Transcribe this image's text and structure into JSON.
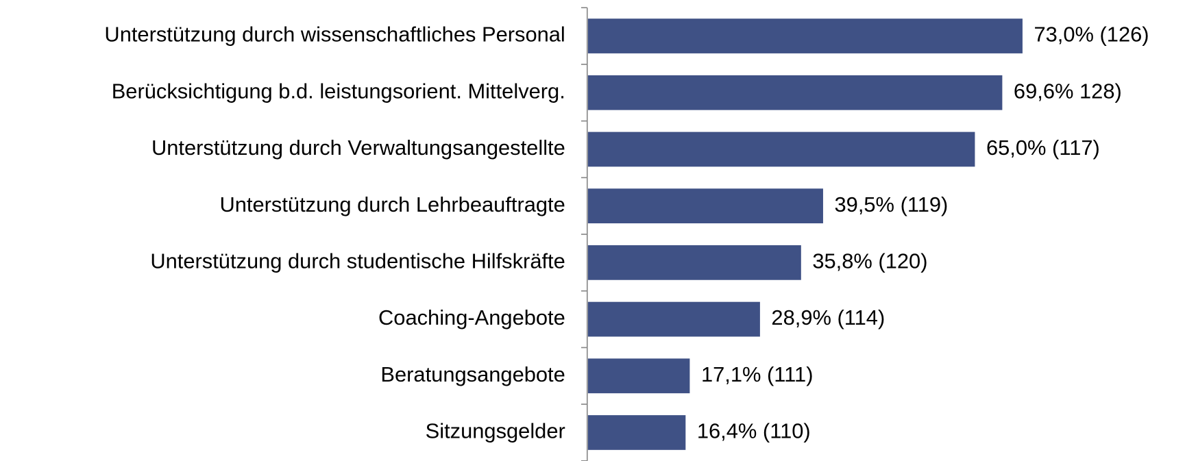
{
  "chart_data": {
    "type": "barh",
    "categories": [
      "Unterstützung durch wissenschaftliches Personal",
      "Berücksichtigung b.d. leistungsorient. Mittelverg.",
      "Unterstützung durch Verwaltungsangestellte",
      "Unterstützung durch Lehrbeauftragte",
      "Unterstützung durch studentische Hilfskräfte",
      "Coaching-Angebote",
      "Beratungsangebote",
      "Sitzungsgelder"
    ],
    "values": [
      73.0,
      69.6,
      65.0,
      39.5,
      35.8,
      28.9,
      17.1,
      16.4
    ],
    "value_labels": [
      "73,0% (126)",
      "69,6% 128)",
      "65,0% (117)",
      "39,5% (119)",
      "35,8% (120)",
      "28,9% (114)",
      "17,1% (111)",
      "16,4% (110)"
    ],
    "color": "#3f5185"
  }
}
